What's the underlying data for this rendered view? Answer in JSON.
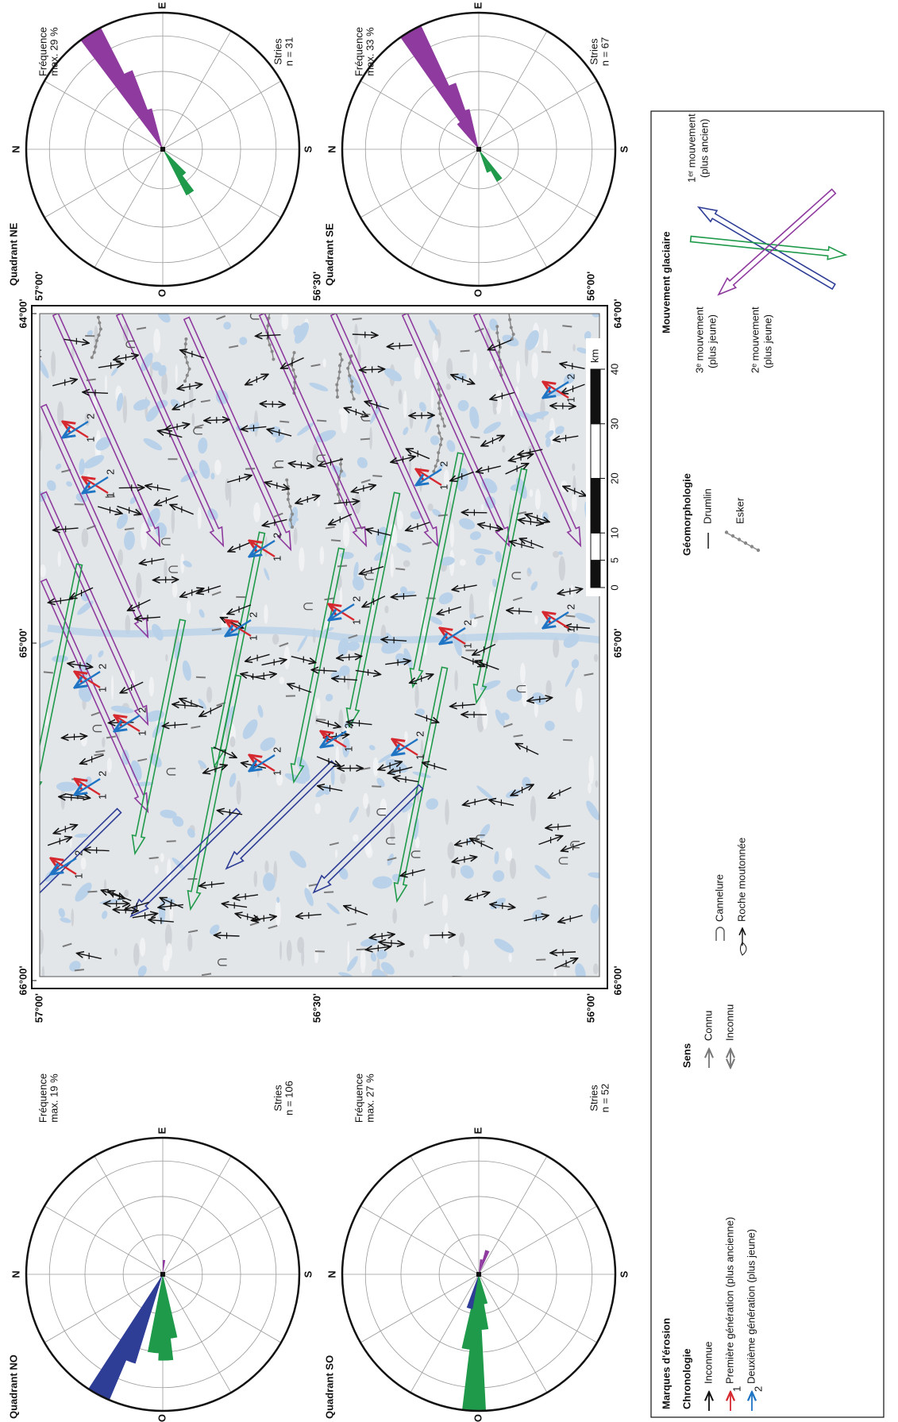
{
  "chart_data": [
    {
      "type": "rose",
      "title": "Quadrant NO",
      "frequency_label": [
        "Fréquence",
        "max. 19 %"
      ],
      "count_label": [
        "Stries",
        "n = 106"
      ],
      "rlim": [
        0,
        19
      ],
      "compass": [
        "N",
        "E",
        "S",
        "O"
      ],
      "petals": [
        {
          "color": "#2e3d96",
          "azimuth": 298,
          "value": 19
        },
        {
          "color": "#2e3d96",
          "azimuth": 292,
          "value": 13
        },
        {
          "color": "#1f9a4a",
          "azimuth": 276,
          "value": 11
        },
        {
          "color": "#1f9a4a",
          "azimuth": 268,
          "value": 12
        },
        {
          "color": "#1f9a4a",
          "azimuth": 262,
          "value": 9
        },
        {
          "color": "#8e3a9e",
          "azimuth": 95,
          "value": 2
        }
      ]
    },
    {
      "type": "rose",
      "title": "Quadrant SO",
      "frequency_label": [
        "Fréquence",
        "max. 27 %"
      ],
      "count_label": [
        "Stries",
        "n = 52"
      ],
      "rlim": [
        0,
        27
      ],
      "compass": [
        "N",
        "E",
        "S",
        "O"
      ],
      "petals": [
        {
          "color": "#1f9a4a",
          "azimuth": 272,
          "value": 27
        },
        {
          "color": "#1f9a4a",
          "azimuth": 278,
          "value": 15
        },
        {
          "color": "#1f9a4a",
          "azimuth": 265,
          "value": 11
        },
        {
          "color": "#1f9a4a",
          "azimuth": 258,
          "value": 6
        },
        {
          "color": "#2e3d96",
          "azimuth": 285,
          "value": 7
        },
        {
          "color": "#8e3a9e",
          "azimuth": 110,
          "value": 5
        },
        {
          "color": "#8e3a9e",
          "azimuth": 100,
          "value": 3
        }
      ]
    },
    {
      "type": "rose",
      "title": "Quadrant NE",
      "frequency_label": [
        "Fréquence",
        "max. 29 %"
      ],
      "count_label": [
        "Stries",
        "n = 31"
      ],
      "rlim": [
        0,
        29
      ],
      "compass": [
        "N",
        "E",
        "S",
        "O"
      ],
      "petals": [
        {
          "color": "#8e3a9e",
          "azimuth": 58,
          "value": 29
        },
        {
          "color": "#8e3a9e",
          "azimuth": 64,
          "value": 18
        },
        {
          "color": "#8e3a9e",
          "azimuth": 70,
          "value": 9
        },
        {
          "color": "#1f9a4a",
          "azimuth": 238,
          "value": 11
        },
        {
          "color": "#1f9a4a",
          "azimuth": 230,
          "value": 7
        }
      ]
    },
    {
      "type": "rose",
      "title": "Quadrant SE",
      "frequency_label": [
        "Fréquence",
        "max. 33 %"
      ],
      "count_label": [
        "Stries",
        "n = 67"
      ],
      "rlim": [
        0,
        33
      ],
      "compass": [
        "N",
        "E",
        "S",
        "O"
      ],
      "petals": [
        {
          "color": "#8e3a9e",
          "azimuth": 60,
          "value": 33
        },
        {
          "color": "#8e3a9e",
          "azimuth": 66,
          "value": 17
        },
        {
          "color": "#8e3a9e",
          "azimuth": 72,
          "value": 10
        },
        {
          "color": "#8e3a9e",
          "azimuth": 54,
          "value": 8
        },
        {
          "color": "#1f9a4a",
          "azimuth": 236,
          "value": 9
        },
        {
          "color": "#1f9a4a",
          "azimuth": 246,
          "value": 6
        }
      ]
    }
  ],
  "map": {
    "lon_ticks": [
      "66°00'",
      "65°00'",
      "64°00'"
    ],
    "lat_ticks": [
      "57°00'",
      "56°30'",
      "56°00'"
    ],
    "scale": {
      "ticks": [
        0,
        5,
        10,
        20,
        30,
        40
      ],
      "unit": "km"
    }
  },
  "legend": {
    "erosion": {
      "title": "Marques d'érosion",
      "chronology_title": "Chronologie",
      "items": [
        "Inconnue",
        "Première génération (plus ancienne)",
        "Deuxième génération (plus jeune)"
      ],
      "generation_marks": [
        "1",
        "2"
      ]
    },
    "sense": {
      "title": "Sens",
      "items": [
        "Connu",
        "Inconnu"
      ]
    },
    "forms": [
      "Cannelure",
      "Roche moutonnée"
    ],
    "geomorphology": {
      "title": "Géomorphologie",
      "items": [
        "Drumlin",
        "Esker"
      ]
    },
    "movement": {
      "title": "Mouvement glaciaire",
      "items": [
        [
          "3ᵉ mouvement",
          "(plus jeune)"
        ],
        [
          "2ᵉ mouvement",
          "(plus jeune)"
        ],
        [
          "1ᵉʳ mouvement",
          "(plus ancien)"
        ]
      ]
    }
  }
}
